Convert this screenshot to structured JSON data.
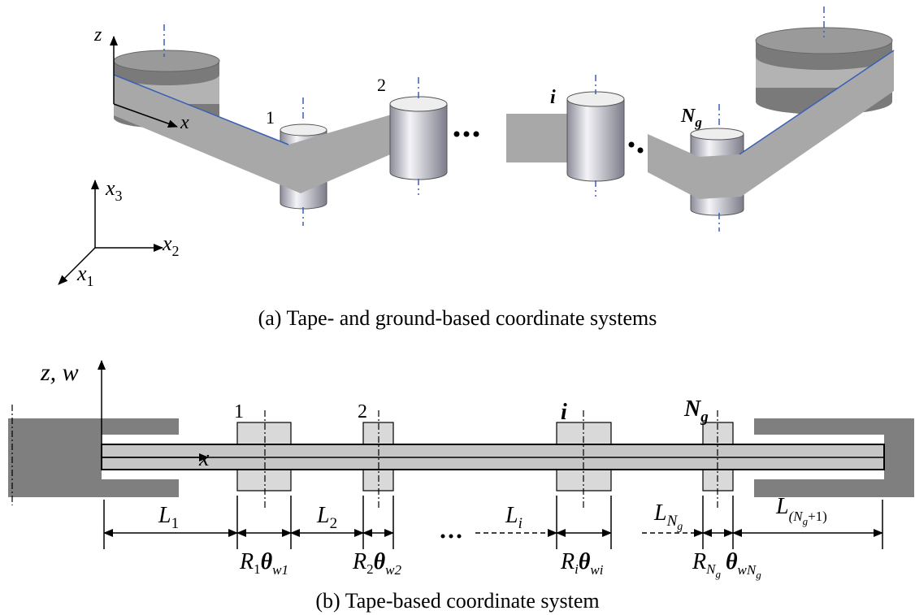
{
  "figure_a": {
    "axes": {
      "z": "z",
      "x": "x"
    },
    "rollers": [
      {
        "label": "1"
      },
      {
        "label": "2"
      },
      {
        "label": "i"
      },
      {
        "label": "N",
        "sub": "g"
      }
    ],
    "ground_axes": [
      {
        "base": "x",
        "sub": "3"
      },
      {
        "base": "x",
        "sub": "2"
      },
      {
        "base": "x",
        "sub": "1"
      }
    ],
    "caption": "(a) Tape- and ground-based coordinate systems"
  },
  "figure_b": {
    "axis_vertical": "z, w",
    "axis_horizontal": "x",
    "rollers": [
      {
        "label": "1"
      },
      {
        "label": "2"
      },
      {
        "label": "i"
      },
      {
        "label": "N",
        "sub": "g"
      }
    ],
    "spans": [
      {
        "base": "L",
        "sub": "1"
      },
      {
        "base": "L",
        "sub": "2"
      },
      {
        "base": "L",
        "sub": "i"
      },
      {
        "base": "L",
        "sub": "N",
        "subsub": "g"
      },
      {
        "base": "L",
        "sub": "(N",
        "subsub": "g",
        "sub_end": "+1)"
      }
    ],
    "wraps": [
      {
        "r": "R",
        "r_sub": "1",
        "theta": "θ",
        "t_sub": "w1"
      },
      {
        "r": "R",
        "r_sub": "2",
        "theta": "θ",
        "t_sub": "w2"
      },
      {
        "r": "R",
        "r_sub": "i",
        "theta": "θ",
        "t_sub": "wi"
      },
      {
        "r": "R",
        "r_sub": "N",
        "r_subsub": "g",
        "theta": "θ",
        "t_sub": "wN",
        "t_subsub": "g"
      }
    ],
    "caption": "(b) Tape-based coordinate system"
  }
}
